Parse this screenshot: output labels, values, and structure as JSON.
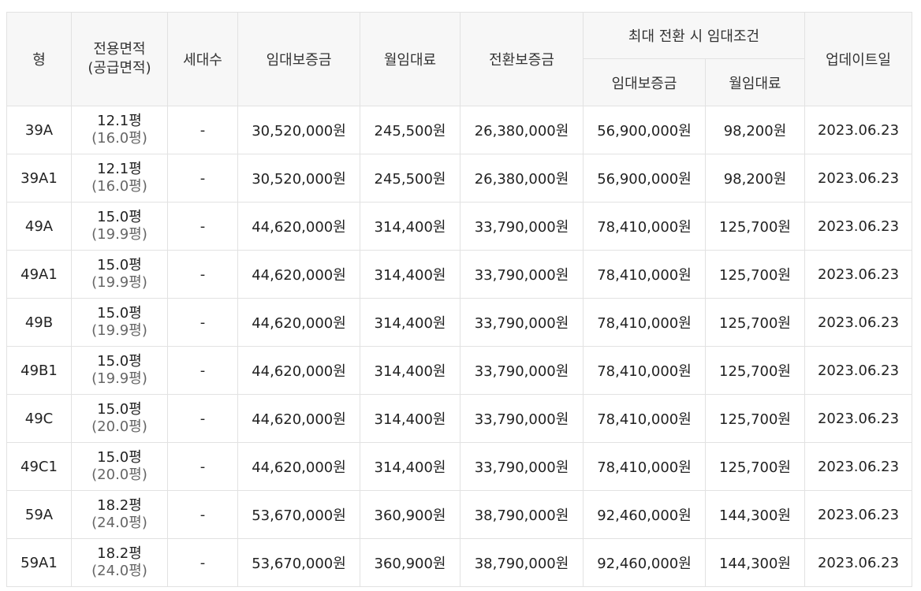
{
  "headers": {
    "type": "형",
    "area_line1": "전용면적",
    "area_line2": "(공급면적)",
    "households": "세대수",
    "deposit": "임대보증금",
    "monthly_rent": "월임대료",
    "conversion_deposit": "전환보증금",
    "max_conversion_group": "최대 전환 시 임대조건",
    "max_deposit": "임대보증금",
    "max_monthly_rent": "월임대료",
    "updated": "업데이트일"
  },
  "rows": [
    {
      "type": "39A",
      "area": "12.1평",
      "supply": "(16.0평)",
      "households": "-",
      "deposit": "30,520,000원",
      "rent": "245,500원",
      "conversion": "26,380,000원",
      "max_deposit": "56,900,000원",
      "max_rent": "98,200원",
      "updated": "2023.06.23"
    },
    {
      "type": "39A1",
      "area": "12.1평",
      "supply": "(16.0평)",
      "households": "-",
      "deposit": "30,520,000원",
      "rent": "245,500원",
      "conversion": "26,380,000원",
      "max_deposit": "56,900,000원",
      "max_rent": "98,200원",
      "updated": "2023.06.23"
    },
    {
      "type": "49A",
      "area": "15.0평",
      "supply": "(19.9평)",
      "households": "-",
      "deposit": "44,620,000원",
      "rent": "314,400원",
      "conversion": "33,790,000원",
      "max_deposit": "78,410,000원",
      "max_rent": "125,700원",
      "updated": "2023.06.23"
    },
    {
      "type": "49A1",
      "area": "15.0평",
      "supply": "(19.9평)",
      "households": "-",
      "deposit": "44,620,000원",
      "rent": "314,400원",
      "conversion": "33,790,000원",
      "max_deposit": "78,410,000원",
      "max_rent": "125,700원",
      "updated": "2023.06.23"
    },
    {
      "type": "49B",
      "area": "15.0평",
      "supply": "(19.9평)",
      "households": "-",
      "deposit": "44,620,000원",
      "rent": "314,400원",
      "conversion": "33,790,000원",
      "max_deposit": "78,410,000원",
      "max_rent": "125,700원",
      "updated": "2023.06.23"
    },
    {
      "type": "49B1",
      "area": "15.0평",
      "supply": "(19.9평)",
      "households": "-",
      "deposit": "44,620,000원",
      "rent": "314,400원",
      "conversion": "33,790,000원",
      "max_deposit": "78,410,000원",
      "max_rent": "125,700원",
      "updated": "2023.06.23"
    },
    {
      "type": "49C",
      "area": "15.0평",
      "supply": "(20.0평)",
      "households": "-",
      "deposit": "44,620,000원",
      "rent": "314,400원",
      "conversion": "33,790,000원",
      "max_deposit": "78,410,000원",
      "max_rent": "125,700원",
      "updated": "2023.06.23"
    },
    {
      "type": "49C1",
      "area": "15.0평",
      "supply": "(20.0평)",
      "households": "-",
      "deposit": "44,620,000원",
      "rent": "314,400원",
      "conversion": "33,790,000원",
      "max_deposit": "78,410,000원",
      "max_rent": "125,700원",
      "updated": "2023.06.23"
    },
    {
      "type": "59A",
      "area": "18.2평",
      "supply": "(24.0평)",
      "households": "-",
      "deposit": "53,670,000원",
      "rent": "360,900원",
      "conversion": "38,790,000원",
      "max_deposit": "92,460,000원",
      "max_rent": "144,300원",
      "updated": "2023.06.23"
    },
    {
      "type": "59A1",
      "area": "18.2평",
      "supply": "(24.0평)",
      "households": "-",
      "deposit": "53,670,000원",
      "rent": "360,900원",
      "conversion": "38,790,000원",
      "max_deposit": "92,460,000원",
      "max_rent": "144,300원",
      "updated": "2023.06.23"
    }
  ]
}
